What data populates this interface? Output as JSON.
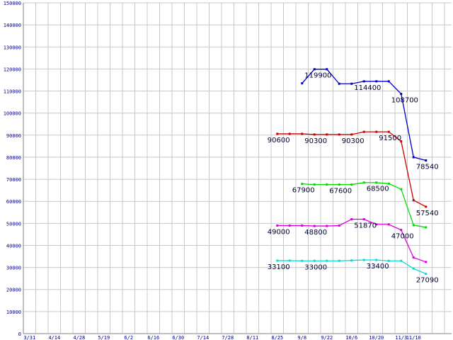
{
  "chart_data": {
    "type": "line",
    "title": "",
    "xlabel": "",
    "ylabel": "",
    "ylim": [
      0,
      150000
    ],
    "y_ticks": [
      "0",
      "10000",
      "20000",
      "30000",
      "40000",
      "50000",
      "60000",
      "70000",
      "80000",
      "90000",
      "100000",
      "110000",
      "120000",
      "130000",
      "140000",
      "150000"
    ],
    "x_ticks": [
      "3/31",
      "4/14",
      "4/28",
      "5/19",
      "6/2",
      "6/16",
      "6/30",
      "7/14",
      "7/28",
      "8/11",
      "8/25",
      "9/8",
      "9/22",
      "10/6",
      "10/20",
      "11/3",
      "11/10"
    ],
    "x_tick_positions": [
      0,
      2,
      4,
      6,
      8,
      10,
      12,
      14,
      16,
      18,
      20,
      22,
      24,
      26,
      28,
      30,
      31
    ],
    "grid": true,
    "legend": "none",
    "series": [
      {
        "color": "#0000cc",
        "points": [
          [
            22.5,
            113500
          ],
          [
            23.5,
            119900
          ],
          [
            24.5,
            119900
          ],
          [
            25.5,
            113300
          ],
          [
            26.5,
            113300
          ],
          [
            27.5,
            114400
          ],
          [
            28.5,
            114400
          ],
          [
            29.5,
            114400
          ],
          [
            30.5,
            108700
          ],
          [
            31.5,
            80000
          ],
          [
            32.5,
            78540
          ]
        ],
        "labels": [
          {
            "x": 23.5,
            "y": 119900,
            "text": "119900"
          },
          {
            "x": 27.5,
            "y": 114400,
            "text": "114400"
          },
          {
            "x": 30.5,
            "y": 108700,
            "text": "108700"
          },
          {
            "x": 32.5,
            "y": 78540,
            "text": "78540"
          }
        ]
      },
      {
        "color": "#cc0000",
        "points": [
          [
            20.5,
            90600
          ],
          [
            21.5,
            90600
          ],
          [
            22.5,
            90600
          ],
          [
            23.5,
            90300
          ],
          [
            24.5,
            90300
          ],
          [
            25.5,
            90300
          ],
          [
            26.5,
            90300
          ],
          [
            27.5,
            91500
          ],
          [
            28.5,
            91500
          ],
          [
            29.5,
            91500
          ],
          [
            30.5,
            87200
          ],
          [
            31.5,
            60500
          ],
          [
            32.5,
            57540
          ]
        ],
        "labels": [
          {
            "x": 20.5,
            "y": 90600,
            "text": "90600"
          },
          {
            "x": 23.5,
            "y": 90300,
            "text": "90300"
          },
          {
            "x": 26.5,
            "y": 90300,
            "text": "90300"
          },
          {
            "x": 29.5,
            "y": 91500,
            "text": "91500"
          },
          {
            "x": 32.5,
            "y": 57540,
            "text": "57540"
          }
        ]
      },
      {
        "color": "#00dd00",
        "points": [
          [
            22.5,
            67900
          ],
          [
            23.5,
            67600
          ],
          [
            24.5,
            67600
          ],
          [
            25.5,
            67600
          ],
          [
            26.5,
            67600
          ],
          [
            27.5,
            68500
          ],
          [
            28.5,
            68500
          ],
          [
            29.5,
            68000
          ],
          [
            30.5,
            65500
          ],
          [
            31.5,
            49200
          ],
          [
            32.5,
            48200
          ]
        ],
        "labels": [
          {
            "x": 22.5,
            "y": 67900,
            "text": "67900"
          },
          {
            "x": 25.5,
            "y": 67600,
            "text": "67600"
          },
          {
            "x": 28.5,
            "y": 68500,
            "text": "68500"
          }
        ]
      },
      {
        "color": "#dd00dd",
        "points": [
          [
            20.5,
            49000
          ],
          [
            21.5,
            49000
          ],
          [
            22.5,
            49000
          ],
          [
            23.5,
            48800
          ],
          [
            24.5,
            48800
          ],
          [
            25.5,
            49000
          ],
          [
            26.5,
            51870
          ],
          [
            27.5,
            51870
          ],
          [
            28.5,
            49500
          ],
          [
            29.5,
            49500
          ],
          [
            30.5,
            47000
          ],
          [
            31.5,
            34500
          ],
          [
            32.5,
            32500
          ]
        ],
        "labels": [
          {
            "x": 20.5,
            "y": 49000,
            "text": "49000"
          },
          {
            "x": 23.5,
            "y": 48800,
            "text": "48800"
          },
          {
            "x": 27.5,
            "y": 51870,
            "text": "51870"
          },
          {
            "x": 30.5,
            "y": 47000,
            "text": "47000"
          }
        ]
      },
      {
        "color": "#00dddd",
        "points": [
          [
            20.5,
            33100
          ],
          [
            21.5,
            33100
          ],
          [
            22.5,
            33000
          ],
          [
            23.5,
            33000
          ],
          [
            24.5,
            33000
          ],
          [
            25.5,
            33000
          ],
          [
            26.5,
            33200
          ],
          [
            27.5,
            33400
          ],
          [
            28.5,
            33400
          ],
          [
            29.5,
            33000
          ],
          [
            30.5,
            33000
          ],
          [
            31.5,
            29500
          ],
          [
            32.5,
            27090
          ]
        ],
        "labels": [
          {
            "x": 20.5,
            "y": 33100,
            "text": "33100"
          },
          {
            "x": 23.5,
            "y": 33000,
            "text": "33000"
          },
          {
            "x": 28.5,
            "y": 33400,
            "text": "33400"
          },
          {
            "x": 32.5,
            "y": 27090,
            "text": "27090"
          }
        ]
      }
    ]
  }
}
